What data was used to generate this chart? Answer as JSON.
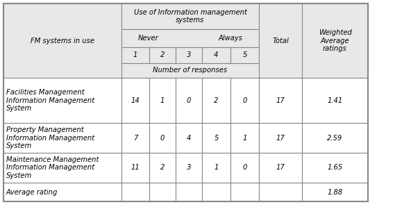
{
  "header_bg": "#e8e8e8",
  "cell_bg": "#ffffff",
  "border_color": "#888888",
  "col_header_row1": "Use of Information management\nsystems",
  "col_header_row2_never": "Never",
  "col_header_row2_always": "Always",
  "col_header_row3": [
    "1",
    "2",
    "3",
    "4",
    "5"
  ],
  "col_header_row4": "Number of responses",
  "row_header": "FM systems in use",
  "total_header": "Total",
  "weighted_header": "Weighted\nAverage\nratings",
  "rows": [
    {
      "name": "Facilities Management\nInformation Management\nSystem",
      "values": [
        "14",
        "1",
        "0",
        "2",
        "0"
      ],
      "total": "17",
      "weighted": "1.41"
    },
    {
      "name": "Property Management\nInformation Management\nSystem",
      "values": [
        "7",
        "0",
        "4",
        "5",
        "1"
      ],
      "total": "17",
      "weighted": "2.59"
    },
    {
      "name": "Maintenance Management\nInformation Management\nSystem",
      "values": [
        "11",
        "2",
        "3",
        "1",
        "0"
      ],
      "total": "17",
      "weighted": "1.65"
    },
    {
      "name": "Average rating",
      "values": [
        "",
        "",
        "",
        "",
        ""
      ],
      "total": "",
      "weighted": "1.88"
    }
  ],
  "figsize": [
    5.92,
    2.98
  ],
  "dpi": 100
}
